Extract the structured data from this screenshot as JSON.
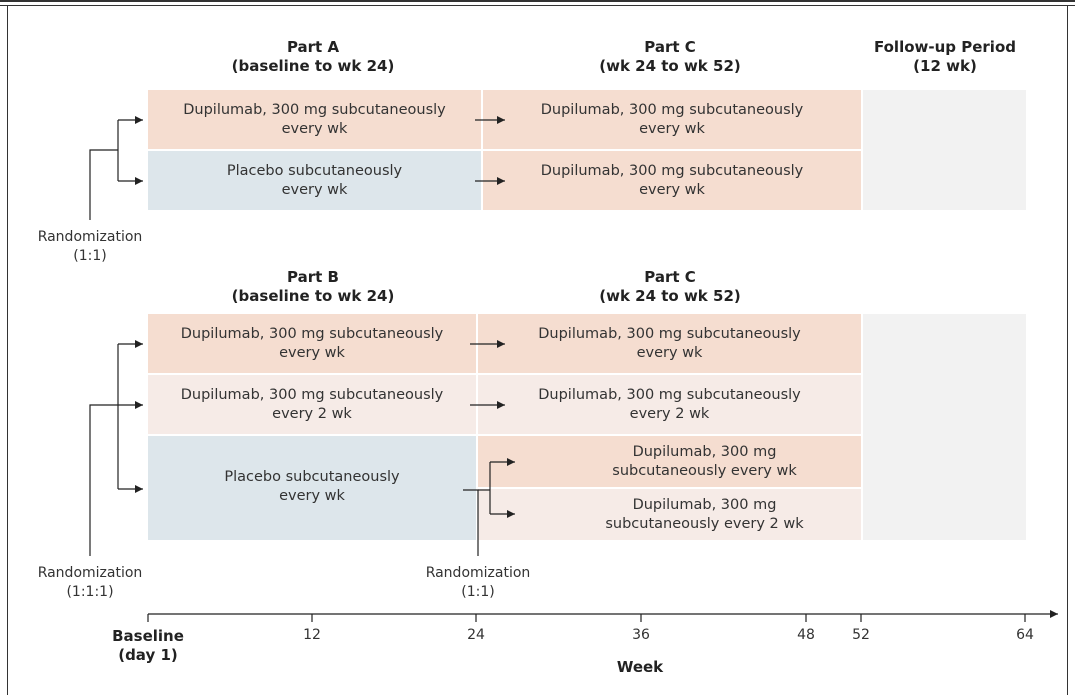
{
  "headers": {
    "part_a_title": "Part A",
    "part_a_sub": "(baseline to wk 24)",
    "part_c_title": "Part C",
    "part_c_sub": "(wk 24 to wk 52)",
    "followup_title": "Follow-up Period",
    "followup_sub": "(12 wk)",
    "part_b_title": "Part B",
    "part_b_sub": "(baseline to wk 24)",
    "part_c2_title": "Part C",
    "part_c2_sub": "(wk 24 to wk 52)"
  },
  "part_a": {
    "arm1_line1": "Dupilumab, 300 mg subcutaneously",
    "arm1_line2": "every wk",
    "arm2_line1": "Placebo subcutaneously",
    "arm2_line2": "every wk"
  },
  "part_c_a": {
    "arm1_line1": "Dupilumab, 300 mg subcutaneously",
    "arm1_line2": "every wk",
    "arm2_line1": "Dupilumab, 300 mg subcutaneously",
    "arm2_line2": "every wk"
  },
  "part_b": {
    "arm1_line1": "Dupilumab, 300 mg subcutaneously",
    "arm1_line2": "every wk",
    "arm2_line1": "Dupilumab, 300 mg subcutaneously",
    "arm2_line2": "every 2 wk",
    "arm3_line1": "Placebo subcutaneously",
    "arm3_line2": "every wk"
  },
  "part_c_b": {
    "arm1_line1": "Dupilumab, 300 mg subcutaneously",
    "arm1_line2": "every wk",
    "arm2_line1": "Dupilumab, 300 mg subcutaneously",
    "arm2_line2": "every 2 wk",
    "arm3_line1": "Dupilumab, 300 mg",
    "arm3_line2": "subcutaneously every wk",
    "arm4_line1": "Dupilumab, 300 mg",
    "arm4_line2": "subcutaneously every 2 wk"
  },
  "randomization": {
    "r1_line1": "Randomization",
    "r1_line2": "(1:1)",
    "r2_line1": "Randomization",
    "r2_line2": "(1:1:1)",
    "r3_line1": "Randomization",
    "r3_line2": "(1:1)"
  },
  "axis": {
    "baseline_line1": "Baseline",
    "baseline_line2": "(day 1)",
    "ticks": [
      "12",
      "24",
      "36",
      "48",
      "52",
      "64"
    ],
    "label": "Week"
  },
  "colors": {
    "dupilumab_weekly": "#f5ddd0",
    "dupilumab_biweekly": "#f6ebe7",
    "placebo": "#dde6eb",
    "followup": "#f2f2f2"
  }
}
